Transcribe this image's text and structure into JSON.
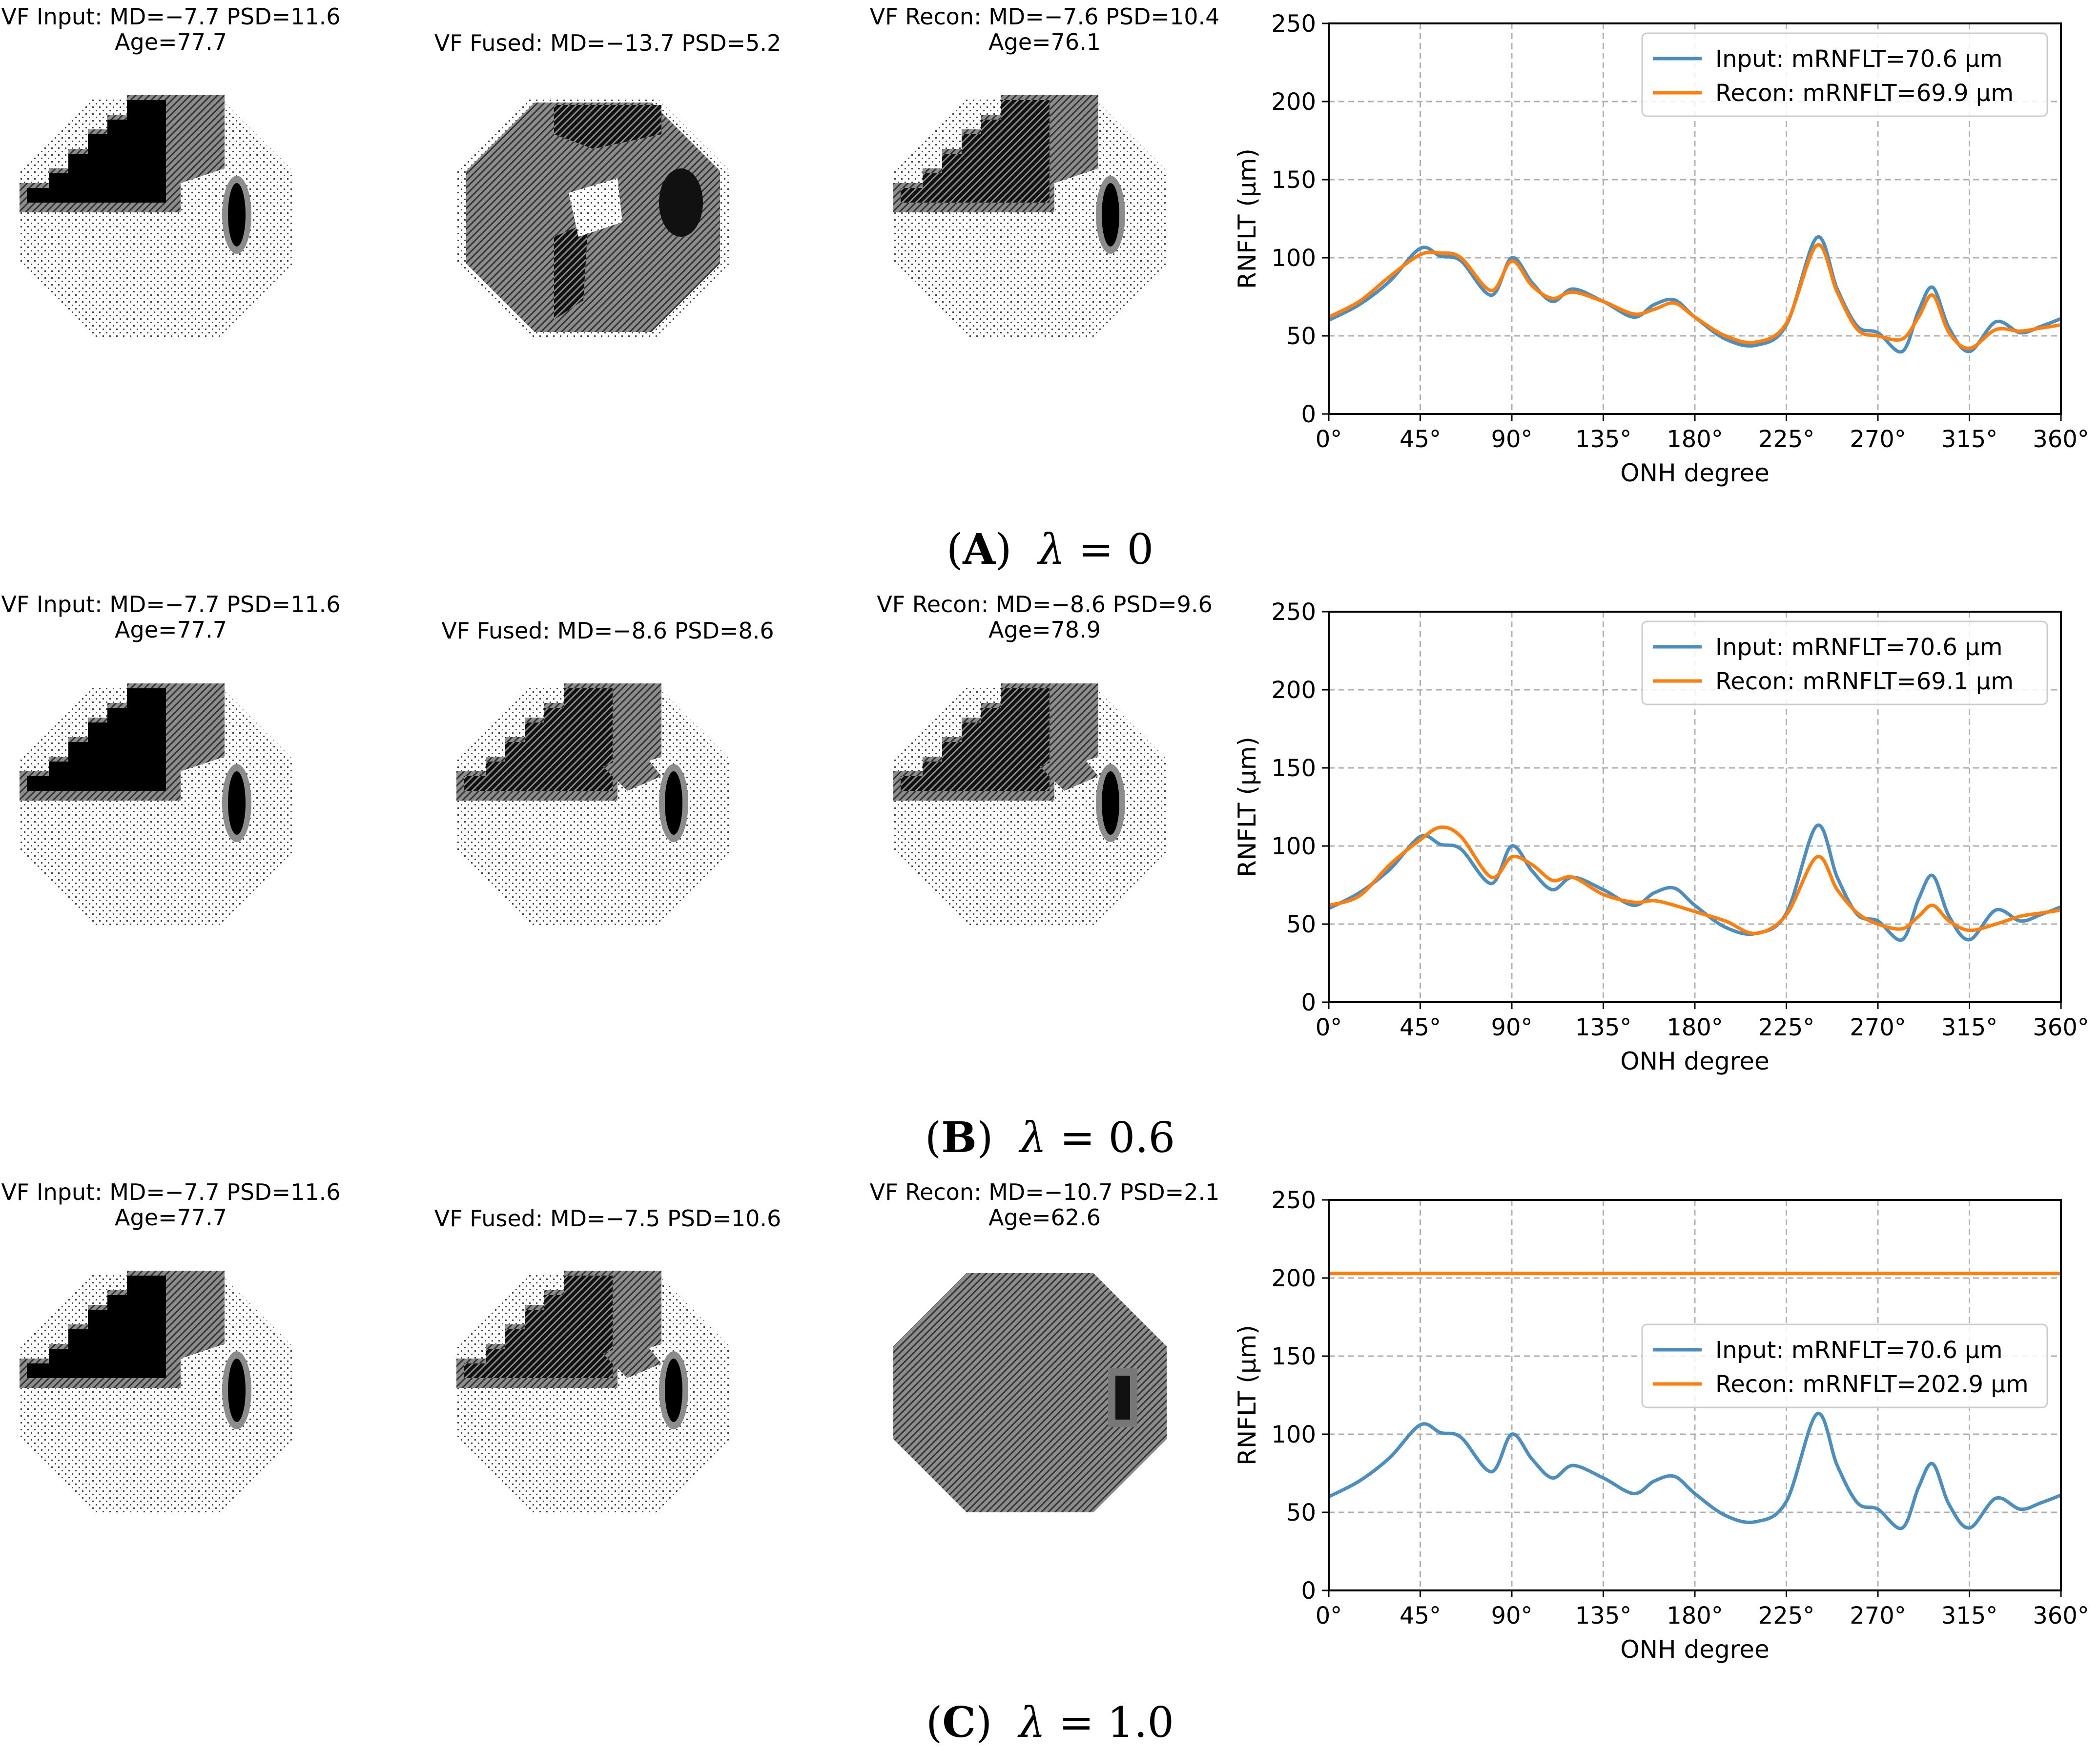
{
  "figure": {
    "rows": [
      {
        "id": "A",
        "caption_letter": "A",
        "caption_symbol": "λ",
        "caption_value": "= 0",
        "vf_input": {
          "title": "VF Input: MD=−7.7 PSD=11.6",
          "age": "Age=77.7"
        },
        "vf_fused": {
          "title": "VF Fused: MD=−13.7 PSD=5.2",
          "age": ""
        },
        "vf_recon": {
          "title": "VF Recon: MD=−7.6 PSD=10.4",
          "age": "Age=76.1"
        },
        "legend_input": "Input:  mRNFLT=70.6 μm",
        "legend_recon": "Recon: mRNFLT=69.9 μm"
      },
      {
        "id": "B",
        "caption_letter": "B",
        "caption_symbol": "λ",
        "caption_value": "= 0.6",
        "vf_input": {
          "title": "VF Input: MD=−7.7 PSD=11.6",
          "age": "Age=77.7"
        },
        "vf_fused": {
          "title": "VF Fused: MD=−8.6 PSD=8.6",
          "age": ""
        },
        "vf_recon": {
          "title": "VF Recon: MD=−8.6 PSD=9.6",
          "age": "Age=78.9"
        },
        "legend_input": "Input:  mRNFLT=70.6 μm",
        "legend_recon": "Recon: mRNFLT=69.1 μm"
      },
      {
        "id": "C",
        "caption_letter": "C",
        "caption_symbol": "λ",
        "caption_value": "= 1.0",
        "vf_input": {
          "title": "VF Input: MD=−7.7 PSD=11.6",
          "age": "Age=77.7"
        },
        "vf_fused": {
          "title": "VF Fused: MD=−7.5 PSD=10.6",
          "age": ""
        },
        "vf_recon": {
          "title": "VF Recon: MD=−10.7 PSD=2.1",
          "age": "Age=62.6"
        },
        "legend_input": "Input:  mRNFLT=70.6 μm",
        "legend_recon": "Recon: mRNFLT=202.9 μm"
      }
    ]
  },
  "chart_data": [
    {
      "type": "line",
      "panel": "A",
      "xlabel": "ONH degree",
      "ylabel": "RNFLT (μm)",
      "xlim": [
        0,
        360
      ],
      "ylim": [
        0,
        250
      ],
      "xticks": [
        0,
        45,
        90,
        135,
        180,
        225,
        270,
        315,
        360
      ],
      "xtick_labels": [
        "0°",
        "45°",
        "90°",
        "135°",
        "180°",
        "225°",
        "270°",
        "315°",
        "360°"
      ],
      "yticks": [
        0,
        50,
        100,
        150,
        200,
        250
      ],
      "grid": true,
      "legend_position": "upper right",
      "x": [
        0,
        15,
        30,
        45,
        55,
        65,
        80,
        90,
        100,
        110,
        120,
        135,
        150,
        160,
        170,
        180,
        195,
        210,
        225,
        240,
        250,
        260,
        270,
        282,
        290,
        297,
        305,
        315,
        328,
        340,
        350,
        360
      ],
      "series": [
        {
          "name": "Input",
          "color": "#4c8fbf",
          "values": [
            60,
            70,
            85,
            106,
            101,
            98,
            76,
            100,
            84,
            72,
            80,
            72,
            62,
            70,
            73,
            62,
            48,
            44,
            57,
            113,
            80,
            56,
            52,
            40,
            66,
            81,
            55,
            40,
            59,
            52,
            56,
            61
          ]
        },
        {
          "name": "Recon",
          "color": "#ff7f0e",
          "values": [
            62,
            72,
            88,
            102,
            103,
            100,
            79,
            98,
            82,
            74,
            78,
            72,
            64,
            67,
            71,
            62,
            50,
            46,
            58,
            108,
            78,
            54,
            50,
            48,
            62,
            76,
            52,
            42,
            54,
            53,
            55,
            57
          ]
        }
      ]
    },
    {
      "type": "line",
      "panel": "B",
      "xlabel": "ONH degree",
      "ylabel": "RNFLT (μm)",
      "xlim": [
        0,
        360
      ],
      "ylim": [
        0,
        250
      ],
      "xticks": [
        0,
        45,
        90,
        135,
        180,
        225,
        270,
        315,
        360
      ],
      "xtick_labels": [
        "0°",
        "45°",
        "90°",
        "135°",
        "180°",
        "225°",
        "270°",
        "315°",
        "360°"
      ],
      "yticks": [
        0,
        50,
        100,
        150,
        200,
        250
      ],
      "grid": true,
      "legend_position": "upper right",
      "x": [
        0,
        15,
        30,
        45,
        55,
        65,
        80,
        90,
        100,
        110,
        120,
        135,
        150,
        160,
        170,
        180,
        195,
        210,
        225,
        240,
        250,
        260,
        270,
        282,
        290,
        297,
        305,
        315,
        328,
        340,
        350,
        360
      ],
      "series": [
        {
          "name": "Input",
          "color": "#4c8fbf",
          "values": [
            60,
            70,
            85,
            106,
            101,
            98,
            76,
            100,
            84,
            72,
            80,
            72,
            62,
            70,
            73,
            62,
            48,
            44,
            57,
            113,
            80,
            56,
            52,
            40,
            66,
            81,
            55,
            40,
            59,
            52,
            56,
            61
          ]
        },
        {
          "name": "Recon",
          "color": "#ff7f0e",
          "values": [
            62,
            68,
            88,
            104,
            112,
            106,
            80,
            93,
            88,
            78,
            80,
            69,
            64,
            65,
            62,
            58,
            52,
            44,
            56,
            93,
            72,
            57,
            50,
            47,
            55,
            62,
            52,
            46,
            50,
            55,
            57,
            59
          ]
        }
      ]
    },
    {
      "type": "line",
      "panel": "C",
      "xlabel": "ONH degree",
      "ylabel": "RNFLT (μm)",
      "xlim": [
        0,
        360
      ],
      "ylim": [
        0,
        250
      ],
      "xticks": [
        0,
        45,
        90,
        135,
        180,
        225,
        270,
        315,
        360
      ],
      "xtick_labels": [
        "0°",
        "45°",
        "90°",
        "135°",
        "180°",
        "225°",
        "270°",
        "315°",
        "360°"
      ],
      "yticks": [
        0,
        50,
        100,
        150,
        200,
        250
      ],
      "grid": true,
      "legend_position": "center right",
      "x": [
        0,
        15,
        30,
        45,
        55,
        65,
        80,
        90,
        100,
        110,
        120,
        135,
        150,
        160,
        170,
        180,
        195,
        210,
        225,
        240,
        250,
        260,
        270,
        282,
        290,
        297,
        305,
        315,
        328,
        340,
        350,
        360
      ],
      "series": [
        {
          "name": "Input",
          "color": "#4c8fbf",
          "values": [
            60,
            70,
            85,
            106,
            101,
            98,
            76,
            100,
            84,
            72,
            80,
            72,
            62,
            70,
            73,
            62,
            48,
            44,
            57,
            113,
            80,
            56,
            52,
            40,
            66,
            81,
            55,
            40,
            59,
            52,
            56,
            61
          ]
        },
        {
          "name": "Recon",
          "color": "#ff7f0e",
          "values": [
            202.9,
            202.9,
            202.9,
            202.9,
            202.9,
            202.9,
            202.9,
            202.9,
            202.9,
            202.9,
            202.9,
            202.9,
            202.9,
            202.9,
            202.9,
            202.9,
            202.9,
            202.9,
            202.9,
            202.9,
            202.9,
            202.9,
            202.9,
            202.9,
            202.9,
            202.9,
            202.9,
            202.9,
            202.9,
            202.9,
            202.9,
            202.9
          ]
        }
      ]
    }
  ]
}
